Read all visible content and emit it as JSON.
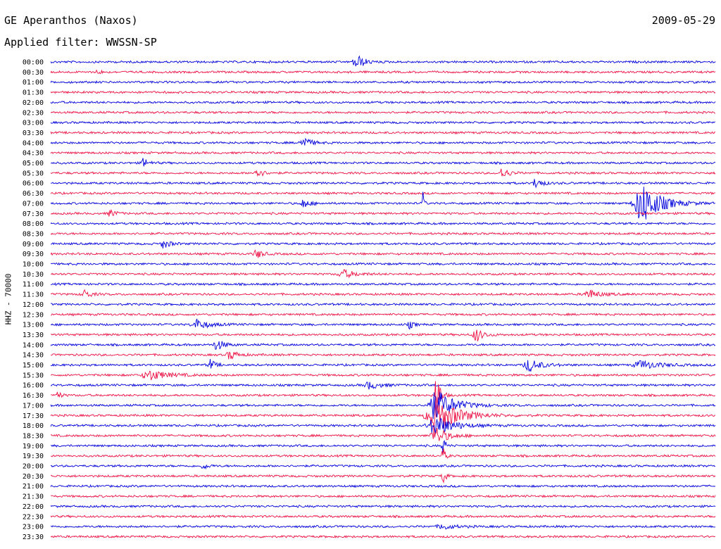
{
  "header": {
    "station": "GE Aperanthos (Naxos)",
    "date": "2009-05-29",
    "filter": "Applied filter: WWSSN-SP",
    "channel": "HHZ - 70000"
  },
  "chart_data": {
    "type": "line",
    "description_of_axes": "helicorder",
    "y_tick_labels": [
      "00:00",
      "00:30",
      "01:00",
      "01:30",
      "02:00",
      "02:30",
      "03:00",
      "03:30",
      "04:00",
      "04:30",
      "05:00",
      "05:30",
      "06:00",
      "06:30",
      "07:00",
      "07:30",
      "08:00",
      "08:30",
      "09:00",
      "09:30",
      "10:00",
      "10:30",
      "11:00",
      "11:30",
      "12:00",
      "12:30",
      "13:00",
      "13:30",
      "14:00",
      "14:30",
      "15:00",
      "15:30",
      "16:00",
      "16:30",
      "17:00",
      "17:30",
      "18:00",
      "18:30",
      "19:00",
      "19:30",
      "20:00",
      "20:30",
      "21:00",
      "21:30",
      "22:00",
      "22:30",
      "23:00",
      "23:30"
    ],
    "colors": [
      "#0000dd",
      "#ee1144"
    ],
    "events": [
      {
        "line": 0,
        "pos": 0.46,
        "amp": 12,
        "width": 0.012
      },
      {
        "line": 1,
        "pos": 0.07,
        "amp": 4,
        "width": 0.006
      },
      {
        "line": 8,
        "pos": 0.38,
        "amp": 9,
        "width": 0.012
      },
      {
        "line": 10,
        "pos": 0.14,
        "amp": 7,
        "width": 0.008
      },
      {
        "line": 11,
        "pos": 0.31,
        "amp": 8,
        "width": 0.01
      },
      {
        "line": 11,
        "pos": 0.68,
        "amp": 9,
        "width": 0.01
      },
      {
        "line": 12,
        "pos": 0.73,
        "amp": 8,
        "width": 0.01
      },
      {
        "line": 14,
        "pos": 0.38,
        "amp": 6,
        "width": 0.012
      },
      {
        "line": 14,
        "pos": 0.89,
        "amp": 30,
        "width": 0.03
      },
      {
        "line": 14,
        "pos": 0.56,
        "amp": 20,
        "width": 0.002
      },
      {
        "line": 15,
        "pos": 0.09,
        "amp": 6,
        "width": 0.008
      },
      {
        "line": 18,
        "pos": 0.17,
        "amp": 7,
        "width": 0.01
      },
      {
        "line": 19,
        "pos": 0.31,
        "amp": 7,
        "width": 0.01
      },
      {
        "line": 21,
        "pos": 0.44,
        "amp": 6,
        "width": 0.02
      },
      {
        "line": 23,
        "pos": 0.05,
        "amp": 7,
        "width": 0.01
      },
      {
        "line": 23,
        "pos": 0.81,
        "amp": 6,
        "width": 0.02
      },
      {
        "line": 26,
        "pos": 0.22,
        "amp": 7,
        "width": 0.02
      },
      {
        "line": 26,
        "pos": 0.54,
        "amp": 6,
        "width": 0.006
      },
      {
        "line": 27,
        "pos": 0.64,
        "amp": 10,
        "width": 0.012
      },
      {
        "line": 28,
        "pos": 0.25,
        "amp": 8,
        "width": 0.012
      },
      {
        "line": 29,
        "pos": 0.27,
        "amp": 7,
        "width": 0.012
      },
      {
        "line": 30,
        "pos": 0.24,
        "amp": 8,
        "width": 0.008
      },
      {
        "line": 30,
        "pos": 0.72,
        "amp": 9,
        "width": 0.02
      },
      {
        "line": 30,
        "pos": 0.89,
        "amp": 6,
        "width": 0.03
      },
      {
        "line": 31,
        "pos": 0.15,
        "amp": 7,
        "width": 0.03
      },
      {
        "line": 32,
        "pos": 0.48,
        "amp": 5,
        "width": 0.02
      },
      {
        "line": 33,
        "pos": 0.01,
        "amp": 6,
        "width": 0.006
      },
      {
        "line": 33,
        "pos": 0.58,
        "amp": 40,
        "width": 0.006
      },
      {
        "line": 34,
        "pos": 0.58,
        "amp": 22,
        "width": 0.03
      },
      {
        "line": 35,
        "pos": 0.58,
        "amp": 26,
        "width": 0.035
      },
      {
        "line": 36,
        "pos": 0.58,
        "amp": 14,
        "width": 0.03
      },
      {
        "line": 37,
        "pos": 0.58,
        "amp": 12,
        "width": 0.02
      },
      {
        "line": 38,
        "pos": 0.59,
        "amp": 18,
        "width": 0.004
      },
      {
        "line": 39,
        "pos": 0.59,
        "amp": 14,
        "width": 0.004
      },
      {
        "line": 40,
        "pos": 0.23,
        "amp": 5,
        "width": 0.008
      },
      {
        "line": 41,
        "pos": 0.59,
        "amp": 14,
        "width": 0.004
      },
      {
        "line": 46,
        "pos": 0.59,
        "amp": 4,
        "width": 0.02
      }
    ]
  }
}
